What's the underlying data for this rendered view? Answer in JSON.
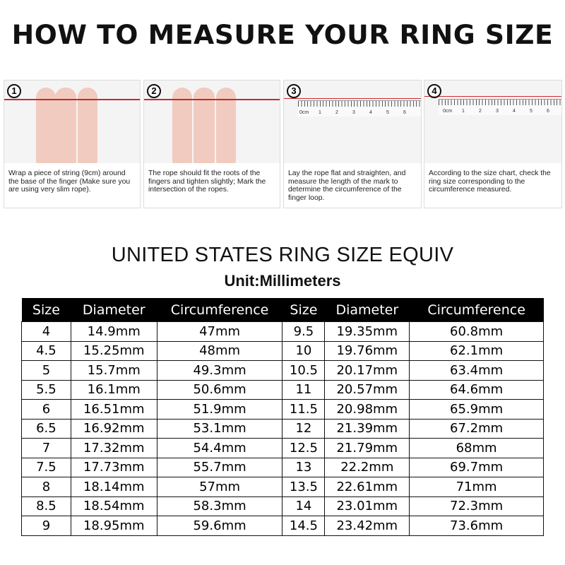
{
  "title": "HOW TO MEASURE YOUR RING SIZE",
  "steps": [
    {
      "num": "1",
      "text": "Wrap a piece of string (9cm) around the base of the finger (Make sure you are using very slim rope)."
    },
    {
      "num": "2",
      "text": "The rope should fit the roots of the fingers and tighten slightly; Mark the intersection of the ropes."
    },
    {
      "num": "3",
      "text": "Lay the rope flat and straighten, and measure the length of the mark to determine the circumference of the finger loop."
    },
    {
      "num": "4",
      "text": "According to the size chart, check the ring size corresponding to the circumference measured."
    }
  ],
  "ruler_labels": [
    "0cm",
    "1",
    "2",
    "3",
    "4",
    "5",
    "6"
  ],
  "chart_title": "UNITED STATES RING SIZE EQUIV",
  "unit": "Unit:Millimeters",
  "headers": [
    "Size",
    "Diameter",
    "Circumference",
    "Size",
    "Diameter",
    "Circumference"
  ],
  "rows": [
    [
      "4",
      "14.9mm",
      "47mm",
      "9.5",
      "19.35mm",
      "60.8mm"
    ],
    [
      "4.5",
      "15.25mm",
      "48mm",
      "10",
      "19.76mm",
      "62.1mm"
    ],
    [
      "5",
      "15.7mm",
      "49.3mm",
      "10.5",
      "20.17mm",
      "63.4mm"
    ],
    [
      "5.5",
      "16.1mm",
      "50.6mm",
      "11",
      "20.57mm",
      "64.6mm"
    ],
    [
      "6",
      "16.51mm",
      "51.9mm",
      "11.5",
      "20.98mm",
      "65.9mm"
    ],
    [
      "6.5",
      "16.92mm",
      "53.1mm",
      "12",
      "21.39mm",
      "67.2mm"
    ],
    [
      "7",
      "17.32mm",
      "54.4mm",
      "12.5",
      "21.79mm",
      "68mm"
    ],
    [
      "7.5",
      "17.73mm",
      "55.7mm",
      "13",
      "22.2mm",
      "69.7mm"
    ],
    [
      "8",
      "18.14mm",
      "57mm",
      "13.5",
      "22.61mm",
      "71mm"
    ],
    [
      "8.5",
      "18.54mm",
      "58.3mm",
      "14",
      "23.01mm",
      "72.3mm"
    ],
    [
      "9",
      "18.95mm",
      "59.6mm",
      "14.5",
      "23.42mm",
      "73.6mm"
    ]
  ]
}
